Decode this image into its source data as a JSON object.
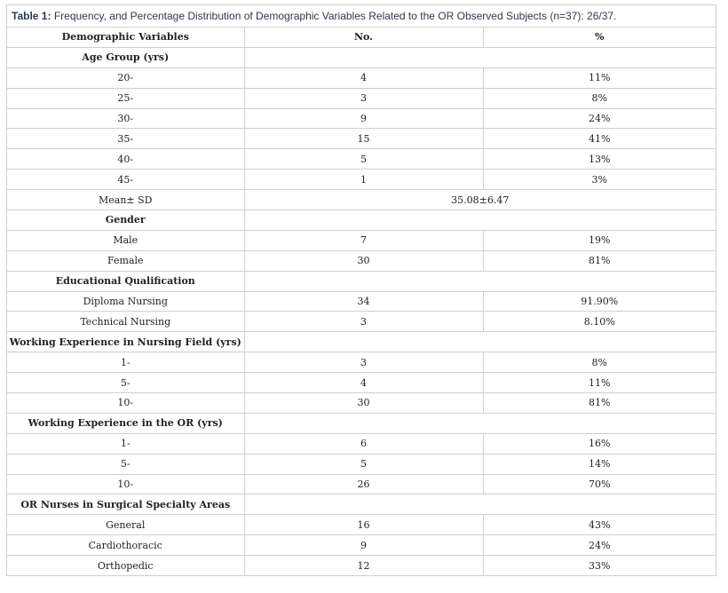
{
  "caption": {
    "label": "Table 1:",
    "text": "Frequency, and Percentage Distribution of Demographic Variables Related to the OR Observed Subjects (n=37): 26/37."
  },
  "table": {
    "header": [
      "Demographic Variables",
      "No.",
      "%"
    ],
    "rows": [
      [
        "Age Group (yrs)"
      ],
      [
        "20-",
        "4",
        "11%"
      ],
      [
        "25-",
        "3",
        "8%"
      ],
      [
        "30-",
        "9",
        "24%"
      ],
      [
        "35-",
        "15",
        "41%"
      ],
      [
        "40-",
        "5",
        "13%"
      ],
      [
        "45-",
        "1",
        "3%"
      ],
      [
        "Mean± SD",
        "35.08±6.47"
      ],
      [
        "Gender"
      ],
      [
        "Male",
        "7",
        "19%"
      ],
      [
        "Female",
        "30",
        "81%"
      ],
      [
        "Educational Qualification"
      ],
      [
        "Diploma Nursing",
        "34",
        "91.90%"
      ],
      [
        "Technical Nursing",
        "3",
        "8.10%"
      ],
      [
        "Working Experience in Nursing Field (yrs)"
      ],
      [
        "1-",
        "3",
        "8%"
      ],
      [
        "5-",
        "4",
        "11%"
      ],
      [
        "10-",
        "30",
        "81%"
      ],
      [
        "Working Experience in the OR (yrs)"
      ],
      [
        "1-",
        "6",
        "16%"
      ],
      [
        "5-",
        "5",
        "14%"
      ],
      [
        "10-",
        "26",
        "70%"
      ],
      [
        "OR Nurses in Surgical Specialty Areas"
      ],
      [
        "General",
        "16",
        "43%"
      ],
      [
        "Cardiothoracic",
        "9",
        "24%"
      ],
      [
        "Orthopedic",
        "12",
        "33%"
      ]
    ]
  }
}
